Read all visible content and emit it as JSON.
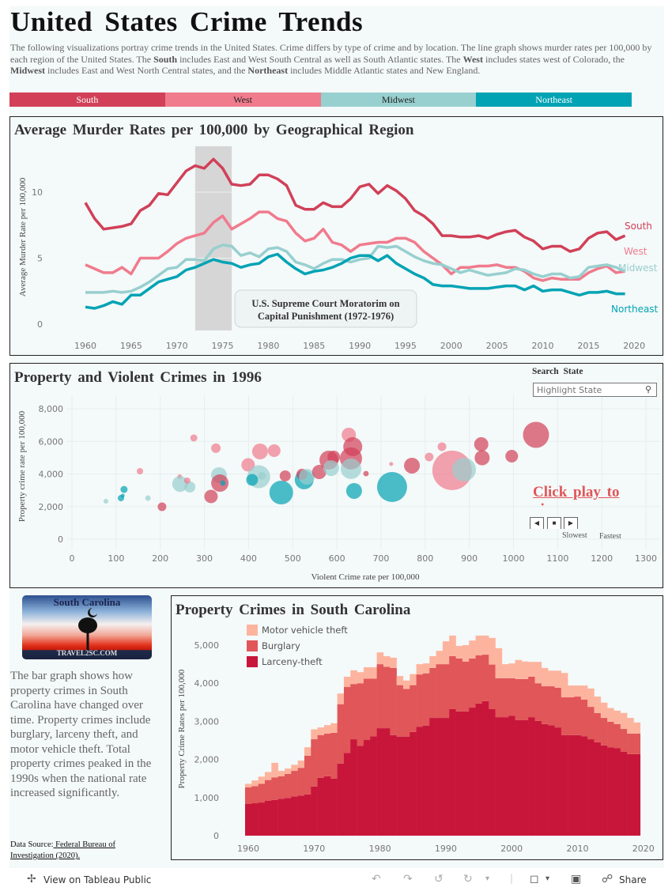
{
  "header": {
    "title": "United States Crime Trends",
    "description": [
      {
        "t": "The following visualizations portray crime trends in the United States.  Crime differs by type of crime and by location.  The line graph shows murder rates per 100,000 by each region of the United States.  The ",
        "b": false
      },
      {
        "t": "South",
        "b": true
      },
      {
        "t": " includes East and West South Central as well as South Atlantic states. The ",
        "b": false
      },
      {
        "t": "West",
        "b": true
      },
      {
        "t": " includes states west of Colorado, the ",
        "b": false
      },
      {
        "t": "Midwest",
        "b": true
      },
      {
        "t": " includes East and West North Central states, and the ",
        "b": false
      },
      {
        "t": "Northeast",
        "b": true
      },
      {
        "t": " includes Middle Atlantic states and New England.",
        "b": false
      }
    ]
  },
  "regions": [
    {
      "label": "South",
      "color": "#d14058",
      "text": "#ffffff"
    },
    {
      "label": "West",
      "color": "#f07b8d",
      "text": "#222222"
    },
    {
      "label": "Midwest",
      "color": "#98cfcf",
      "text": "#222222"
    },
    {
      "label": "Northeast",
      "color": "#00a3b4",
      "text": "#ffffff"
    }
  ],
  "chart_data": [
    {
      "type": "line",
      "title": "Average Murder Rates per 100,000 by Geographical Region",
      "ylabel": "Average Murder Rate per 100,000",
      "xlabel": "",
      "xlim": [
        1957,
        2022
      ],
      "ylim": [
        0,
        14
      ],
      "xticks": [
        1960,
        1965,
        1970,
        1975,
        1980,
        1985,
        1990,
        1995,
        2000,
        2005,
        2010,
        2015,
        2020
      ],
      "yticks": [
        0,
        5,
        10
      ],
      "x_start": 1960,
      "annotation": {
        "text1": "U.S. Supreme Court Moratorim on",
        "text2": "Capital Punishment (1972-1976)",
        "from": 1972,
        "to": 1976
      },
      "series": [
        {
          "name": "South",
          "color": "#d14058",
          "values": [
            9.2,
            8.0,
            7.2,
            7.3,
            7.4,
            7.6,
            8.6,
            9.0,
            9.9,
            9.8,
            10.7,
            11.6,
            12.0,
            11.8,
            12.5,
            11.8,
            10.6,
            10.5,
            10.6,
            11.3,
            11.3,
            11.0,
            10.5,
            9.0,
            8.7,
            8.7,
            9.2,
            8.9,
            8.9,
            9.5,
            10.4,
            10.6,
            9.9,
            10.5,
            10.1,
            9.5,
            8.6,
            8.2,
            7.6,
            6.7,
            6.7,
            6.6,
            6.6,
            6.7,
            6.5,
            6.8,
            7.0,
            7.1,
            6.6,
            6.3,
            5.7,
            5.9,
            5.9,
            5.5,
            5.7,
            6.5,
            6.9,
            7.0,
            6.4,
            6.7
          ]
        },
        {
          "name": "West",
          "color": "#f07b8d",
          "values": [
            4.5,
            4.2,
            3.9,
            3.9,
            4.3,
            3.8,
            5.0,
            5.0,
            5.0,
            5.5,
            6.1,
            6.5,
            6.7,
            6.9,
            7.7,
            8.2,
            7.2,
            7.6,
            8.0,
            8.5,
            8.5,
            8.0,
            7.8,
            6.9,
            6.3,
            6.5,
            7.2,
            6.2,
            6.0,
            5.5,
            6.0,
            6.1,
            6.2,
            6.2,
            6.5,
            6.5,
            6.2,
            5.5,
            5.0,
            4.5,
            3.8,
            4.3,
            4.3,
            4.4,
            4.4,
            4.5,
            4.3,
            4.3,
            4.0,
            3.5,
            3.3,
            3.5,
            3.4,
            3.4,
            3.4,
            3.9,
            4.2,
            4.4,
            3.9,
            4.0
          ]
        },
        {
          "name": "Midwest",
          "color": "#98cfcf",
          "values": [
            2.4,
            2.4,
            2.4,
            2.5,
            2.4,
            2.5,
            2.8,
            3.2,
            3.7,
            4.2,
            4.3,
            4.9,
            4.9,
            4.8,
            5.7,
            6.0,
            5.9,
            5.2,
            5.4,
            5.1,
            5.7,
            5.8,
            5.5,
            4.7,
            4.5,
            4.2,
            4.6,
            4.9,
            4.9,
            4.7,
            4.9,
            5.0,
            5.9,
            5.8,
            5.9,
            5.5,
            5.1,
            4.8,
            4.6,
            4.5,
            4.2,
            3.9,
            4.1,
            3.9,
            3.7,
            3.8,
            3.9,
            4.2,
            4.1,
            3.8,
            3.6,
            3.8,
            3.8,
            3.5,
            3.6,
            4.3,
            4.4,
            4.5,
            4.3,
            4.0
          ]
        },
        {
          "name": "Northeast",
          "color": "#00a3b4",
          "values": [
            1.3,
            1.2,
            1.4,
            1.7,
            1.5,
            2.2,
            2.2,
            2.7,
            3.2,
            3.4,
            3.6,
            4.1,
            4.3,
            4.6,
            4.9,
            4.7,
            4.6,
            4.3,
            4.5,
            4.6,
            5.1,
            5.3,
            4.7,
            4.2,
            3.8,
            4.0,
            4.1,
            4.3,
            4.6,
            5.0,
            5.2,
            5.2,
            4.8,
            5.2,
            4.6,
            4.2,
            3.8,
            3.5,
            3.0,
            2.9,
            2.9,
            2.8,
            2.7,
            2.7,
            2.7,
            2.8,
            2.9,
            2.9,
            2.6,
            2.9,
            2.5,
            2.6,
            2.6,
            2.4,
            2.2,
            2.4,
            2.4,
            2.5,
            2.3,
            2.3
          ]
        }
      ]
    },
    {
      "type": "scatter",
      "title": "Property and Violent Crimes in 1996",
      "xlabel": "Violent Crime rate per 100,000",
      "ylabel": "Property crime rate per 100,000",
      "xlim": [
        0,
        1300
      ],
      "ylim": [
        0,
        8000
      ],
      "xticks": [
        0,
        100,
        200,
        300,
        400,
        500,
        600,
        700,
        800,
        900,
        1000,
        1100,
        1200,
        1300
      ],
      "yticks": [
        0,
        2000,
        4000,
        6000,
        8000
      ],
      "points": [
        {
          "region": "Midwest",
          "x": 77,
          "y": 2330,
          "size": 9
        },
        {
          "region": "Northeast",
          "x": 111,
          "y": 2520,
          "size": 16
        },
        {
          "region": "Northeast",
          "x": 118,
          "y": 3050,
          "size": 20
        },
        {
          "region": "Northeast",
          "x": 115,
          "y": 2670,
          "size": 6
        },
        {
          "region": "West",
          "x": 154,
          "y": 4170,
          "size": 16
        },
        {
          "region": "Midwest",
          "x": 172,
          "y": 2520,
          "size": 12
        },
        {
          "region": "South",
          "x": 204,
          "y": 1990,
          "size": 30
        },
        {
          "region": "West",
          "x": 276,
          "y": 6210,
          "size": 20
        },
        {
          "region": "West",
          "x": 244,
          "y": 3830,
          "size": 9
        },
        {
          "region": "Midwest",
          "x": 245,
          "y": 3390,
          "size": 100
        },
        {
          "region": "Midwest",
          "x": 267,
          "y": 3200,
          "size": 49
        },
        {
          "region": "West",
          "x": 261,
          "y": 3590,
          "size": 16
        },
        {
          "region": "West",
          "x": 326,
          "y": 5580,
          "size": 36
        },
        {
          "region": "Midwest",
          "x": 333,
          "y": 3930,
          "size": 100
        },
        {
          "region": "South",
          "x": 335,
          "y": 3440,
          "size": 121
        },
        {
          "region": "Northeast",
          "x": 342,
          "y": 3440,
          "size": 12
        },
        {
          "region": "South",
          "x": 315,
          "y": 2620,
          "size": 72
        },
        {
          "region": "West",
          "x": 399,
          "y": 4560,
          "size": 72
        },
        {
          "region": "West",
          "x": 426,
          "y": 5380,
          "size": 100
        },
        {
          "region": "West",
          "x": 458,
          "y": 5430,
          "size": 64
        },
        {
          "region": "Midwest",
          "x": 423,
          "y": 3830,
          "size": 210
        },
        {
          "region": "Northeast",
          "x": 408,
          "y": 3640,
          "size": 56
        },
        {
          "region": "Midwest",
          "x": 430,
          "y": 3880,
          "size": 25
        },
        {
          "region": "Northeast",
          "x": 474,
          "y": 2860,
          "size": 225
        },
        {
          "region": "South",
          "x": 483,
          "y": 3880,
          "size": 49
        },
        {
          "region": "Northeast",
          "x": 526,
          "y": 3640,
          "size": 144
        },
        {
          "region": "South",
          "x": 521,
          "y": 3980,
          "size": 49
        },
        {
          "region": "Midwest",
          "x": 532,
          "y": 3830,
          "size": 100
        },
        {
          "region": "South",
          "x": 560,
          "y": 4120,
          "size": 81
        },
        {
          "region": "South",
          "x": 582,
          "y": 4850,
          "size": 144
        },
        {
          "region": "South",
          "x": 593,
          "y": 5040,
          "size": 64
        },
        {
          "region": "Midwest",
          "x": 587,
          "y": 4360,
          "size": 100
        },
        {
          "region": "West",
          "x": 627,
          "y": 6400,
          "size": 81
        },
        {
          "region": "South",
          "x": 636,
          "y": 5670,
          "size": 144
        },
        {
          "region": "South",
          "x": 632,
          "y": 4950,
          "size": 196
        },
        {
          "region": "Midwest",
          "x": 632,
          "y": 4320,
          "size": 169
        },
        {
          "region": "South",
          "x": 666,
          "y": 4020,
          "size": 12
        },
        {
          "region": "Northeast",
          "x": 639,
          "y": 2960,
          "size": 100
        },
        {
          "region": "West",
          "x": 723,
          "y": 4610,
          "size": 6
        },
        {
          "region": "South",
          "x": 770,
          "y": 4510,
          "size": 100
        },
        {
          "region": "Northeast",
          "x": 725,
          "y": 3200,
          "size": 361
        },
        {
          "region": "West",
          "x": 809,
          "y": 5040,
          "size": 30
        },
        {
          "region": "West",
          "x": 838,
          "y": 5670,
          "size": 30
        },
        {
          "region": "West",
          "x": 861,
          "y": 4220,
          "size": 625
        },
        {
          "region": "Midwest",
          "x": 888,
          "y": 4270,
          "size": 225
        },
        {
          "region": "South",
          "x": 927,
          "y": 5820,
          "size": 81
        },
        {
          "region": "South",
          "x": 929,
          "y": 4990,
          "size": 90
        },
        {
          "region": "South",
          "x": 996,
          "y": 5090,
          "size": 64
        },
        {
          "region": "South",
          "x": 1051,
          "y": 6400,
          "size": 272
        }
      ]
    },
    {
      "type": "bar",
      "stacked": true,
      "title": "Property Crimes in South Carolina",
      "ylabel": "Property Crime Rates per 100,000",
      "xlabel": "",
      "ylim": [
        0,
        5400
      ],
      "x_start": 1960,
      "xticks": [
        1960,
        1970,
        1980,
        1990,
        2000,
        2010,
        2020
      ],
      "yticks": [
        0,
        1000,
        2000,
        3000,
        4000,
        5000
      ],
      "series": [
        {
          "name": "Larceny-theft",
          "color": "#c8163a",
          "values": [
            830,
            850,
            870,
            920,
            940,
            970,
            990,
            1030,
            1050,
            1080,
            1290,
            1520,
            1560,
            1500,
            1890,
            2170,
            2530,
            2360,
            2510,
            2610,
            2820,
            2820,
            2640,
            2600,
            2600,
            2720,
            2860,
            2890,
            3090,
            3090,
            3090,
            3320,
            3260,
            3260,
            3360,
            3470,
            3530,
            3320,
            3110,
            3110,
            3150,
            3030,
            3030,
            3110,
            3010,
            2930,
            2900,
            2840,
            2640,
            2640,
            2640,
            2610,
            2530,
            2450,
            2370,
            2320,
            2300,
            2200,
            2140,
            2140
          ]
        },
        {
          "name": "Burglary",
          "color": "#e05659",
          "values": [
            440,
            450,
            490,
            540,
            590,
            590,
            630,
            670,
            730,
            1020,
            1240,
            1120,
            1120,
            1200,
            1560,
            1730,
            1450,
            1640,
            1610,
            1510,
            1680,
            1610,
            1760,
            1350,
            1250,
            1230,
            1370,
            1370,
            1310,
            1410,
            1410,
            1390,
            1390,
            1310,
            1290,
            1260,
            1220,
            1170,
            1020,
            1020,
            980,
            1080,
            1080,
            1060,
            990,
            990,
            1020,
            1040,
            990,
            990,
            1010,
            960,
            850,
            770,
            720,
            670,
            630,
            600,
            540,
            540
          ]
        },
        {
          "name": "Motor vehicle theft",
          "color": "#fdb49e",
          "values": [
            90,
            150,
            190,
            210,
            380,
            140,
            140,
            160,
            190,
            220,
            260,
            200,
            220,
            250,
            280,
            270,
            360,
            290,
            300,
            300,
            310,
            280,
            270,
            240,
            220,
            290,
            270,
            260,
            310,
            350,
            600,
            540,
            330,
            430,
            470,
            520,
            500,
            700,
            790,
            370,
            390,
            500,
            460,
            390,
            560,
            480,
            410,
            450,
            640,
            310,
            290,
            370,
            480,
            430,
            400,
            360,
            350,
            420,
            410,
            290
          ]
        }
      ]
    }
  ],
  "scatter_controls": {
    "search_label": "Search State",
    "search_placeholder": "Highlight State",
    "play_text": "Click play to view",
    "slowest": "Slowest",
    "fastest": "Fastest"
  },
  "sidebar": {
    "plate_top": "South Carolina",
    "plate_bottom": "TRAVEL2SC.COM",
    "text": "The bar graph shows how property crimes in South Carolina have changed over time.  Property crimes include burglary, larceny theft, and motor vehicle theft.  Total property crimes peaked in the 1990s when the national rate increased significantly.",
    "source_label": "Data Source:",
    "source_link": " Federal Bureau of Investigation (2020). "
  },
  "footer": {
    "view_label": "View on Tableau Public",
    "share_label": "Share"
  }
}
